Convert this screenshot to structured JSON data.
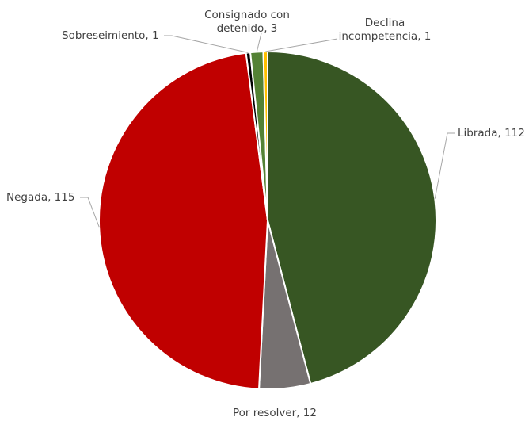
{
  "chart_data": {
    "type": "pie",
    "title": "",
    "start_angle_deg": 0,
    "direction": "clockwise",
    "slices": [
      {
        "name": "Librada",
        "value": 112,
        "color": "#375623",
        "label_lines": [
          "Librada, 112"
        ]
      },
      {
        "name": "Por resolver",
        "value": 12,
        "color": "#767171",
        "label_lines": [
          "Por resolver, 12"
        ]
      },
      {
        "name": "Negada",
        "value": 115,
        "color": "#c00000",
        "label_lines": [
          "Negada, 115"
        ]
      },
      {
        "name": "Sobreseimiento",
        "value": 1,
        "color": "#000000",
        "label_lines": [
          "Sobreseimiento, 1"
        ]
      },
      {
        "name": "Consignado con detenido",
        "value": 3,
        "color": "#548235",
        "label_lines": [
          "Consignado con",
          "detenido, 3"
        ]
      },
      {
        "name": "Declina incompetencia",
        "value": 1,
        "color": "#ffc000",
        "label_lines": [
          "Declina",
          "incompetencia, 1"
        ]
      }
    ]
  }
}
